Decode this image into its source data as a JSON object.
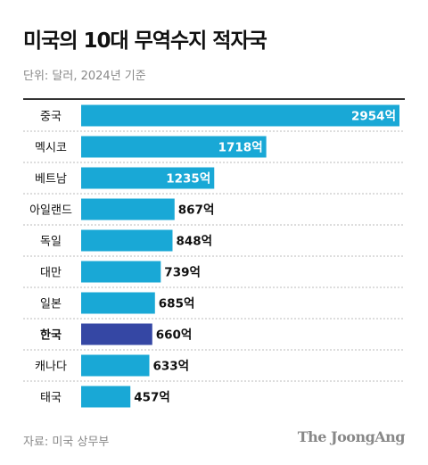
{
  "title": "미국의 10대 무역수지 적자국",
  "subtitle": "단위: 달러, 2024년 기준",
  "source": "자료: 미국 상무부",
  "brand": "The JoongAng",
  "colors": {
    "bar": "#19a8d6",
    "highlight_bar": "#3547a4",
    "label_inside": "#ffffff",
    "label_outside": "#111111",
    "separator": "#bbbbbb"
  },
  "chart_data": {
    "type": "bar",
    "orientation": "horizontal",
    "categories": [
      "중국",
      "멕시코",
      "베트남",
      "아일랜드",
      "독일",
      "대만",
      "일본",
      "한국",
      "캐나다",
      "태국"
    ],
    "values": [
      2954,
      1718,
      1235,
      867,
      848,
      739,
      685,
      660,
      633,
      457
    ],
    "value_labels": [
      "2954억",
      "1718억",
      "1235억",
      "867억",
      "848억",
      "739억",
      "685억",
      "660억",
      "633억",
      "457억"
    ],
    "highlight": "한국",
    "xlim": [
      0,
      2954
    ]
  }
}
